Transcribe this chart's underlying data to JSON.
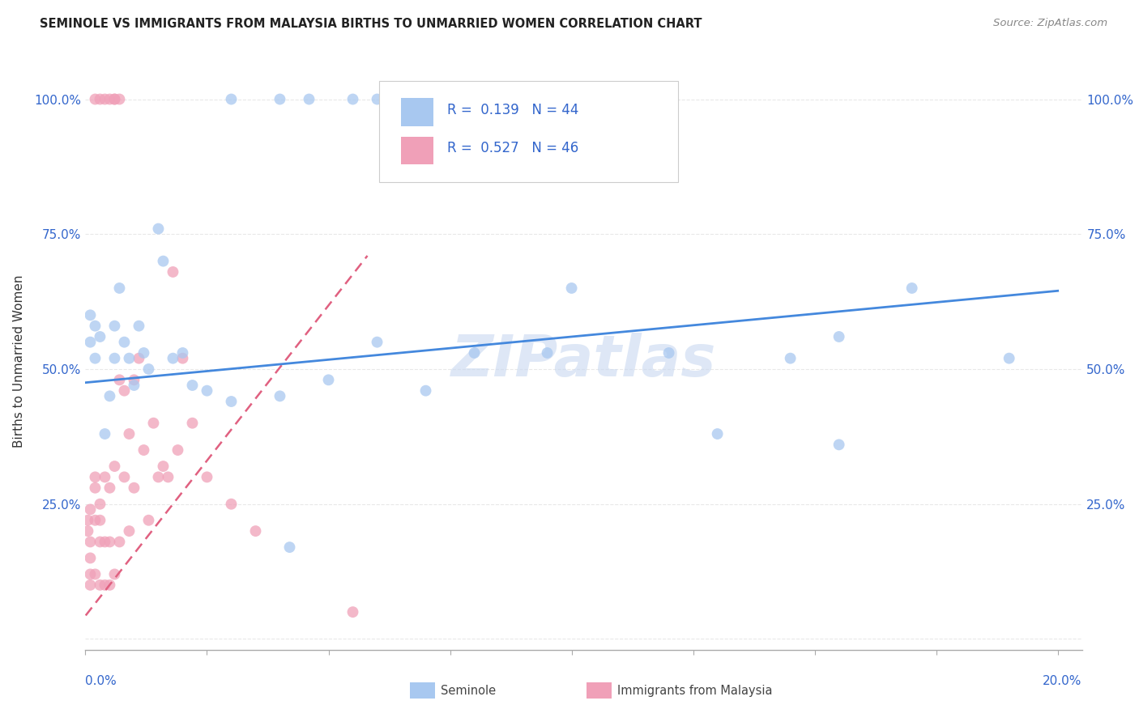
{
  "title": "SEMINOLE VS IMMIGRANTS FROM MALAYSIA BIRTHS TO UNMARRIED WOMEN CORRELATION CHART",
  "source": "Source: ZipAtlas.com",
  "ylabel": "Births to Unmarried Women",
  "legend_label1": "Seminole",
  "legend_label2": "Immigrants from Malaysia",
  "color_seminole": "#A8C8F0",
  "color_malaysia": "#F0A0B8",
  "color_trend_seminole": "#4488DD",
  "color_trend_malaysia": "#E06080",
  "color_grid": "#E8E8E8",
  "watermark_color": "#C8D8F0",
  "seminole_x": [
    0.001,
    0.001,
    0.002,
    0.002,
    0.003,
    0.004,
    0.005,
    0.006,
    0.006,
    0.007,
    0.008,
    0.009,
    0.01,
    0.011,
    0.012,
    0.013,
    0.015,
    0.016,
    0.018,
    0.02,
    0.022,
    0.025,
    0.03,
    0.04,
    0.042,
    0.05,
    0.06,
    0.07,
    0.08,
    0.095,
    0.1,
    0.12,
    0.13,
    0.145,
    0.155,
    0.17,
    0.19,
    0.155
  ],
  "seminole_y": [
    0.6,
    0.55,
    0.58,
    0.52,
    0.56,
    0.38,
    0.45,
    0.52,
    0.58,
    0.65,
    0.55,
    0.52,
    0.47,
    0.58,
    0.53,
    0.5,
    0.76,
    0.7,
    0.52,
    0.53,
    0.47,
    0.46,
    0.44,
    0.45,
    0.17,
    0.48,
    0.55,
    0.46,
    0.53,
    0.53,
    0.65,
    0.53,
    0.38,
    0.52,
    0.56,
    0.65,
    0.52,
    0.36
  ],
  "seminole_top_x": [
    0.03,
    0.04,
    0.046,
    0.055,
    0.06,
    0.065,
    0.07
  ],
  "seminole_top_y": [
    1.0,
    1.0,
    1.0,
    1.0,
    1.0,
    1.0,
    1.0
  ],
  "malaysia_x": [
    0.0005,
    0.0005,
    0.001,
    0.001,
    0.001,
    0.001,
    0.001,
    0.002,
    0.002,
    0.002,
    0.002,
    0.003,
    0.003,
    0.003,
    0.003,
    0.004,
    0.004,
    0.004,
    0.005,
    0.005,
    0.005,
    0.006,
    0.006,
    0.007,
    0.007,
    0.008,
    0.008,
    0.009,
    0.009,
    0.01,
    0.01,
    0.011,
    0.012,
    0.013,
    0.014,
    0.015,
    0.016,
    0.017,
    0.018,
    0.019,
    0.02,
    0.022,
    0.025,
    0.03,
    0.035,
    0.055
  ],
  "malaysia_y": [
    0.2,
    0.22,
    0.1,
    0.12,
    0.15,
    0.18,
    0.24,
    0.12,
    0.22,
    0.28,
    0.3,
    0.1,
    0.18,
    0.22,
    0.25,
    0.1,
    0.18,
    0.3,
    0.1,
    0.18,
    0.28,
    0.12,
    0.32,
    0.18,
    0.48,
    0.3,
    0.46,
    0.38,
    0.2,
    0.28,
    0.48,
    0.52,
    0.35,
    0.22,
    0.4,
    0.3,
    0.32,
    0.3,
    0.68,
    0.35,
    0.52,
    0.4,
    0.3,
    0.25,
    0.2,
    0.05
  ],
  "malaysia_top_x": [
    0.002,
    0.003,
    0.004,
    0.005,
    0.006,
    0.006,
    0.007
  ],
  "malaysia_top_y": [
    1.0,
    1.0,
    1.0,
    1.0,
    1.0,
    1.0,
    1.0
  ],
  "seminole_trend_x0": 0.0,
  "seminole_trend_x1": 0.2,
  "seminole_trend_y0": 0.475,
  "seminole_trend_y1": 0.645,
  "malaysia_trend_x0": -0.002,
  "malaysia_trend_x1": 0.058,
  "malaysia_trend_y0": 0.02,
  "malaysia_trend_y1": 0.71,
  "xlim_min": 0.0,
  "xlim_max": 0.205,
  "ylim_min": -0.02,
  "ylim_max": 1.05,
  "ytick_positions": [
    0.0,
    0.25,
    0.5,
    0.75,
    1.0
  ],
  "ytick_labels_left": [
    "",
    "25.0%",
    "50.0%",
    "75.0%",
    "100.0%"
  ],
  "ytick_labels_right": [
    "",
    "25.0%",
    "50.0%",
    "75.0%",
    "100.0%"
  ],
  "xtick_positions": [
    0.0,
    0.025,
    0.05,
    0.075,
    0.1,
    0.125,
    0.15,
    0.175,
    0.2
  ]
}
